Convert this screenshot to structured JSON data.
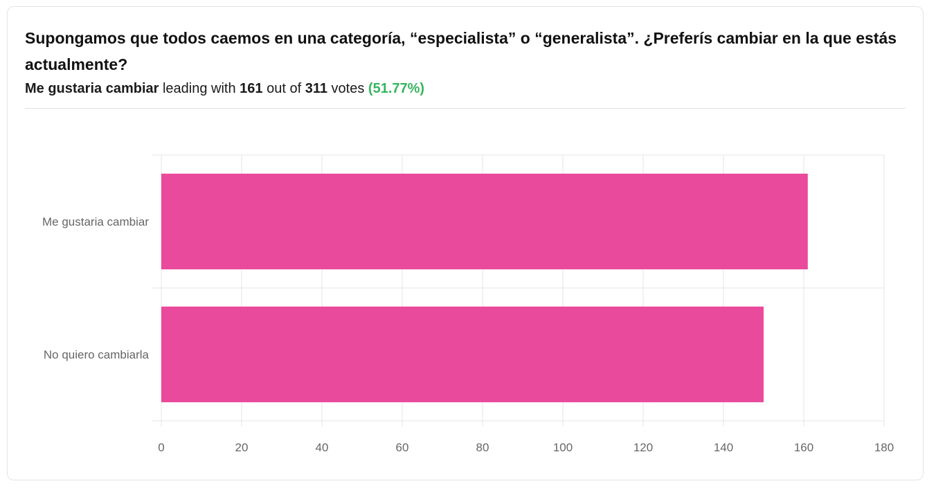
{
  "poll": {
    "question": "Supongamos que todos caemos en una categoría, “especialista” o “generalista”. ¿Preferís cambiar en la que estás actualmente?",
    "leader": "Me gustaria cambiar",
    "leading_text": "leading with",
    "leader_votes": "161",
    "out_of_text": "out of",
    "total_votes": "311",
    "votes_text": "votes",
    "leader_pct": "(51.77%)"
  },
  "colors": {
    "bar": "#ea4a9b",
    "grid": "#e4e4e4",
    "percent": "#35b55f"
  },
  "chart_data": {
    "type": "bar",
    "orientation": "horizontal",
    "categories": [
      "Me gustaria cambiar",
      "No quiero cambiarla"
    ],
    "values": [
      161,
      150
    ],
    "xlim": [
      0,
      180
    ],
    "xticks": [
      0,
      20,
      40,
      60,
      80,
      100,
      120,
      140,
      160,
      180
    ],
    "grid": true,
    "legend": "none"
  }
}
